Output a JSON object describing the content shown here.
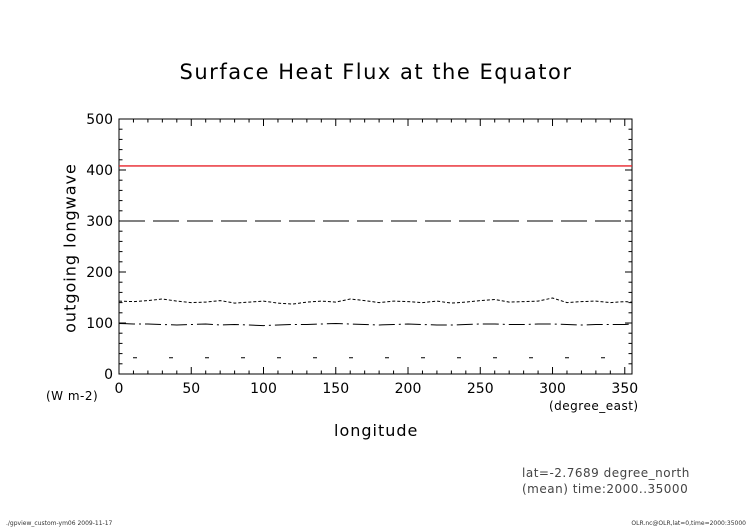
{
  "chart_data": {
    "type": "line",
    "title": "Surface Heat Flux at the Equator",
    "ylabel": "outgoing longwave",
    "yunits": "(W m-2)",
    "xlabel": "longitude",
    "xunits": "(degree_east)",
    "xlim": [
      0,
      355
    ],
    "ylim": [
      0,
      500
    ],
    "xticks": [
      0,
      50,
      100,
      150,
      200,
      250,
      300,
      350
    ],
    "yticks": [
      0,
      100,
      200,
      300,
      400,
      500
    ],
    "x": [
      0,
      10,
      20,
      30,
      40,
      50,
      60,
      70,
      80,
      90,
      100,
      110,
      120,
      130,
      140,
      150,
      160,
      170,
      180,
      190,
      200,
      210,
      220,
      230,
      240,
      250,
      260,
      270,
      280,
      290,
      300,
      310,
      320,
      330,
      340,
      350,
      355
    ],
    "series": [
      {
        "style": "solid",
        "color": "#e8232a",
        "values": [
          408,
          408,
          408,
          408,
          408,
          408,
          408,
          408,
          408,
          408,
          408,
          408,
          408,
          408,
          408,
          408,
          408,
          408,
          408,
          408,
          408,
          408,
          408,
          408,
          408,
          408,
          408,
          408,
          408,
          408,
          408,
          408,
          408,
          408,
          408,
          408,
          408
        ]
      },
      {
        "style": "long-dash",
        "color": "#000000",
        "values": [
          300,
          300,
          300,
          300,
          300,
          300,
          300,
          300,
          300,
          300,
          300,
          300,
          300,
          300,
          300,
          300,
          300,
          300,
          300,
          300,
          300,
          300,
          300,
          300,
          300,
          300,
          300,
          300,
          300,
          300,
          300,
          300,
          300,
          300,
          300,
          300,
          300
        ]
      },
      {
        "style": "dotted",
        "color": "#000000",
        "values": [
          143,
          142,
          144,
          147,
          143,
          140,
          141,
          144,
          139,
          141,
          143,
          139,
          137,
          141,
          143,
          141,
          147,
          144,
          140,
          143,
          142,
          140,
          143,
          139,
          141,
          144,
          146,
          141,
          142,
          143,
          149,
          140,
          142,
          143,
          140,
          142,
          141
        ]
      },
      {
        "style": "dash-dot",
        "color": "#000000",
        "values": [
          99,
          98,
          98,
          97,
          96,
          97,
          98,
          96,
          97,
          96,
          95,
          96,
          97,
          97,
          98,
          99,
          98,
          97,
          96,
          97,
          98,
          97,
          96,
          96,
          97,
          98,
          98,
          97,
          97,
          98,
          98,
          97,
          96,
          97,
          97,
          97,
          98
        ]
      },
      {
        "style": "sparse-dash",
        "color": "#000000",
        "values": [
          32,
          32,
          32,
          32,
          32,
          32,
          32,
          32,
          32,
          32,
          32,
          32,
          32,
          32,
          32,
          32,
          32,
          32,
          32,
          32,
          32,
          32,
          32,
          32,
          32,
          32,
          32,
          32,
          32,
          32,
          32,
          32,
          32,
          32,
          32,
          32,
          32
        ]
      }
    ]
  },
  "info": {
    "line1": "lat=-2.7689 degree_north",
    "line2": "(mean) time:2000..35000"
  },
  "footer": {
    "left": "./gpview_custom-ym06   2009-11-17",
    "right": "OLR.nc@OLR,lat=0,time=2000:35000"
  }
}
